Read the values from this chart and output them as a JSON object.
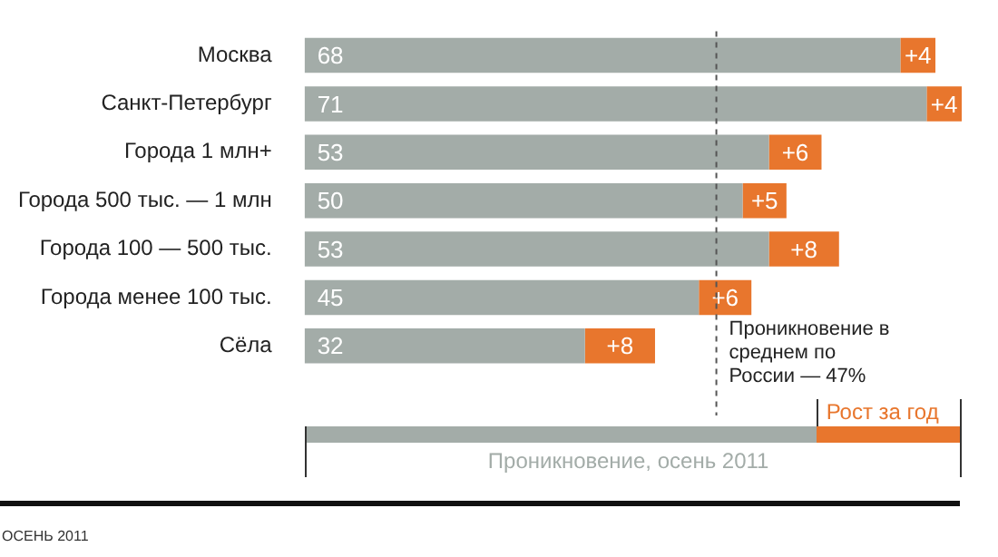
{
  "chart_data": {
    "type": "bar",
    "orientation": "horizontal",
    "stacked": true,
    "categories": [
      "Москва",
      "Санкт-Петербург",
      "Города 1 млн+",
      "Города 500 тыс. — 1 млн",
      "Города 100 — 500 тыс.",
      "Города менее 100 тыс.",
      "Сёла"
    ],
    "series": [
      {
        "name": "Проникновение, осень 2011",
        "color": "#a3aca8",
        "values": [
          68,
          71,
          53,
          50,
          53,
          45,
          32
        ],
        "value_labels": [
          "68",
          "71",
          "53",
          "50",
          "53",
          "45",
          "32"
        ]
      },
      {
        "name": "Рост за год",
        "color": "#e8762d",
        "values": [
          4,
          4,
          6,
          5,
          8,
          6,
          8
        ],
        "value_labels": [
          "+4",
          "+4",
          "+6",
          "+5",
          "+8",
          "+6",
          "+8"
        ]
      }
    ],
    "ref_lines": [
      {
        "axis": "x",
        "value": 47,
        "label": "Проникновение в среднем по России — 47%",
        "line_style": "dashed"
      }
    ],
    "legend": "bottom",
    "grid": false,
    "tick_labels": "y",
    "annotations": [
      "ОСЕНЬ 2011"
    ]
  }
}
